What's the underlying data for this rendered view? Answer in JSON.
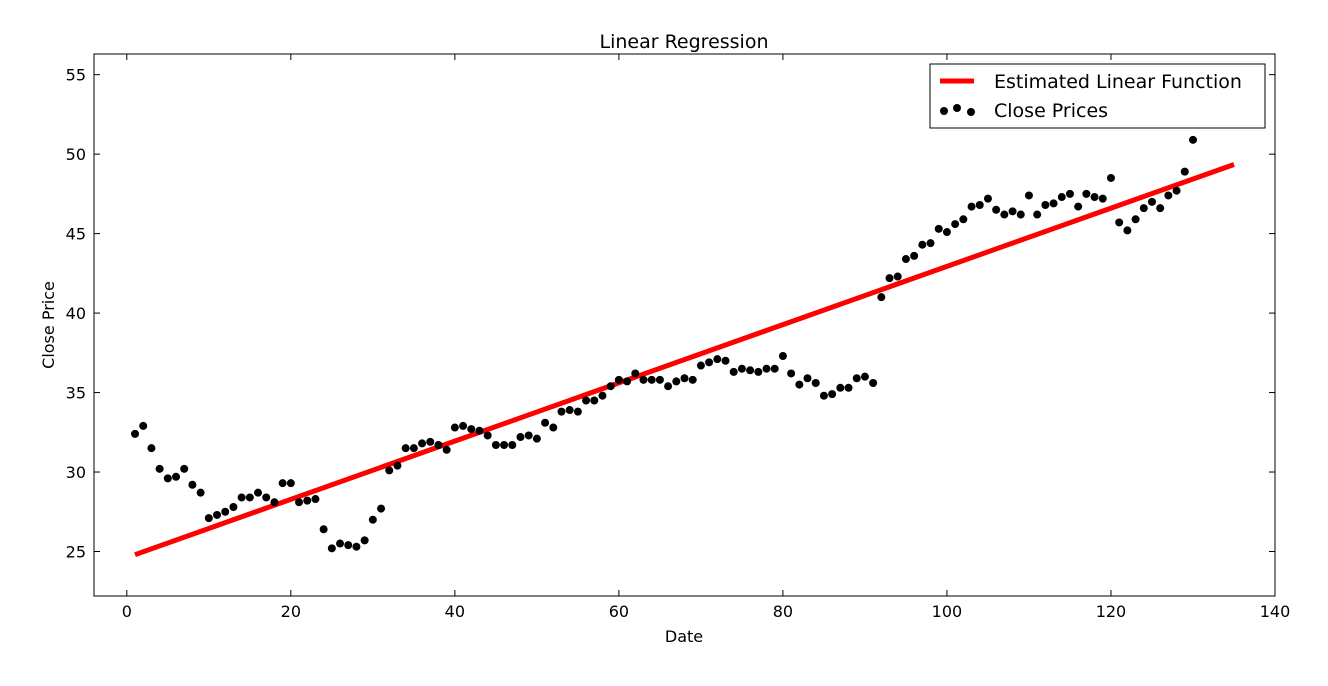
{
  "chart_data": {
    "type": "scatter",
    "title": "Linear Regression",
    "xlabel": "Date",
    "ylabel": "Close Price",
    "xlim": [
      -4,
      140
    ],
    "ylim": [
      22.2,
      56.3
    ],
    "xticks": [
      0,
      20,
      40,
      60,
      80,
      100,
      120,
      140
    ],
    "yticks": [
      25,
      30,
      35,
      40,
      45,
      50,
      55
    ],
    "grid": false,
    "legend_position": "top-right",
    "legend": [
      "Estimated Linear Function",
      "Close Prices"
    ],
    "colors": {
      "line": "#ff0000",
      "points": "#000000"
    },
    "series": [
      {
        "name": "Estimated Linear Function",
        "type": "line",
        "x": [
          1,
          135
        ],
        "y": [
          24.8,
          49.35
        ]
      },
      {
        "name": "Close Prices",
        "type": "scatter",
        "x": [
          1,
          2,
          3,
          4,
          5,
          6,
          7,
          8,
          9,
          10,
          11,
          12,
          13,
          14,
          15,
          16,
          17,
          18,
          19,
          20,
          21,
          22,
          23,
          24,
          25,
          26,
          27,
          28,
          29,
          30,
          31,
          32,
          33,
          34,
          35,
          36,
          37,
          38,
          39,
          40,
          41,
          42,
          43,
          44,
          45,
          46,
          47,
          48,
          49,
          50,
          51,
          52,
          53,
          54,
          55,
          56,
          57,
          58,
          59,
          60,
          61,
          62,
          63,
          64,
          65,
          66,
          67,
          68,
          69,
          70,
          71,
          72,
          73,
          74,
          75,
          76,
          77,
          78,
          79,
          80,
          81,
          82,
          83,
          84,
          85,
          86,
          87,
          88,
          89,
          90,
          91,
          92,
          93,
          94,
          95,
          96,
          97,
          98,
          99,
          100,
          101,
          102,
          103,
          104,
          105,
          106,
          107,
          108,
          109,
          110,
          111,
          112,
          113,
          114,
          115,
          116,
          117,
          118,
          119,
          120,
          121,
          122,
          123,
          124,
          125,
          126,
          127,
          128,
          129,
          130
        ],
        "y": [
          32.4,
          32.9,
          31.5,
          30.2,
          29.6,
          29.7,
          30.2,
          29.2,
          28.7,
          27.1,
          27.3,
          27.5,
          27.8,
          28.4,
          28.4,
          28.7,
          28.4,
          28.1,
          29.3,
          29.3,
          28.1,
          28.2,
          28.3,
          26.4,
          25.2,
          25.5,
          25.4,
          25.3,
          25.7,
          27.0,
          27.7,
          30.1,
          30.4,
          31.5,
          31.5,
          31.8,
          31.9,
          31.7,
          31.4,
          32.8,
          32.9,
          32.7,
          32.6,
          32.3,
          31.7,
          31.7,
          31.7,
          32.2,
          32.3,
          32.1,
          33.1,
          32.8,
          33.8,
          33.9,
          33.8,
          34.5,
          34.5,
          34.8,
          35.4,
          35.8,
          35.7,
          36.2,
          35.8,
          35.8,
          35.8,
          35.4,
          35.7,
          35.9,
          35.8,
          36.7,
          36.9,
          37.1,
          37.0,
          36.3,
          36.5,
          36.4,
          36.3,
          36.5,
          36.5,
          37.3,
          36.2,
          35.5,
          35.9,
          35.6,
          34.8,
          34.9,
          35.3,
          35.3,
          35.9,
          36.0,
          35.6,
          41.0,
          42.2,
          42.3,
          43.4,
          43.6,
          44.3,
          44.4,
          45.3,
          45.1,
          45.6,
          45.9,
          46.7,
          46.8,
          47.2,
          46.5,
          46.2,
          46.4,
          46.2,
          47.4,
          46.2,
          46.8,
          46.9,
          47.3,
          47.5,
          46.7,
          47.5,
          47.3,
          47.2,
          48.5,
          45.7,
          45.2,
          45.9,
          46.6,
          47.0,
          46.6,
          47.4,
          47.7,
          48.9,
          50.9
        ]
      }
    ]
  }
}
